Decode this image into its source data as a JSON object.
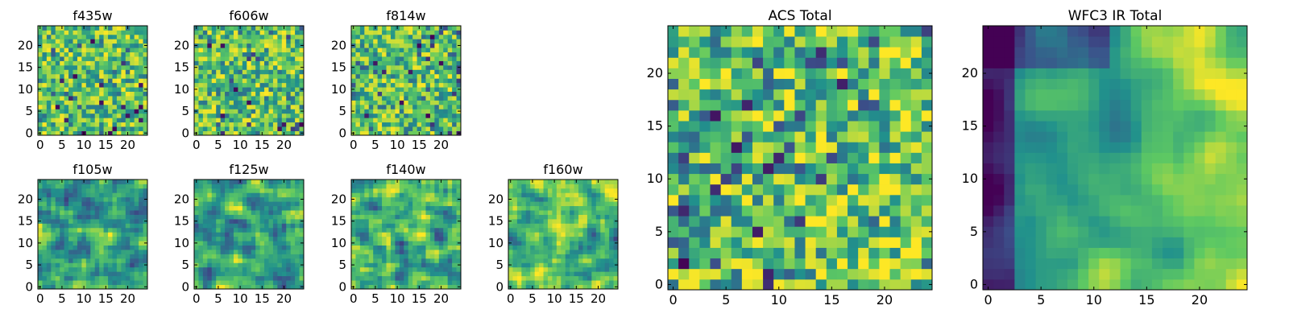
{
  "chart_data": [
    {
      "id": "f435w",
      "type": "heatmap",
      "title": "f435w",
      "xlabel": "",
      "ylabel": "",
      "grid_size": [
        25,
        25
      ],
      "colormap": "viridis",
      "xlim": [
        -0.5,
        24.5
      ],
      "ylim": [
        -0.5,
        24.5
      ],
      "xticks": [
        0,
        5,
        10,
        15,
        20
      ],
      "yticks": [
        0,
        5,
        10,
        15,
        20
      ],
      "texture": "noisy",
      "values": "per-pixel values are not individually readable; reconstructed as a noisy field"
    },
    {
      "id": "f606w",
      "type": "heatmap",
      "title": "f606w",
      "xlabel": "",
      "ylabel": "",
      "grid_size": [
        25,
        25
      ],
      "colormap": "viridis",
      "xlim": [
        -0.5,
        24.5
      ],
      "ylim": [
        -0.5,
        24.5
      ],
      "xticks": [
        0,
        5,
        10,
        15,
        20
      ],
      "yticks": [
        0,
        5,
        10,
        15,
        20
      ],
      "texture": "noisy"
    },
    {
      "id": "f814w",
      "type": "heatmap",
      "title": "f814w",
      "xlabel": "",
      "ylabel": "",
      "grid_size": [
        25,
        25
      ],
      "colormap": "viridis",
      "xlim": [
        -0.5,
        24.5
      ],
      "ylim": [
        -0.5,
        24.5
      ],
      "xticks": [
        0,
        5,
        10,
        15,
        20
      ],
      "yticks": [
        0,
        5,
        10,
        15,
        20
      ],
      "texture": "noisy"
    },
    {
      "id": "f105w",
      "type": "heatmap",
      "title": "f105w",
      "xlabel": "",
      "ylabel": "",
      "grid_size": [
        25,
        25
      ],
      "colormap": "viridis",
      "xlim": [
        -0.5,
        24.5
      ],
      "ylim": [
        -0.5,
        24.5
      ],
      "xticks": [
        0,
        5,
        10,
        15,
        20
      ],
      "yticks": [
        0,
        5,
        10,
        15,
        20
      ],
      "texture": "smooth"
    },
    {
      "id": "f125w",
      "type": "heatmap",
      "title": "f125w",
      "xlabel": "",
      "ylabel": "",
      "grid_size": [
        25,
        25
      ],
      "colormap": "viridis",
      "xlim": [
        -0.5,
        24.5
      ],
      "ylim": [
        -0.5,
        24.5
      ],
      "xticks": [
        0,
        5,
        10,
        15,
        20
      ],
      "yticks": [
        0,
        5,
        10,
        15,
        20
      ],
      "texture": "smooth"
    },
    {
      "id": "f140w",
      "type": "heatmap",
      "title": "f140w",
      "xlabel": "",
      "ylabel": "",
      "grid_size": [
        25,
        25
      ],
      "colormap": "viridis",
      "xlim": [
        -0.5,
        24.5
      ],
      "ylim": [
        -0.5,
        24.5
      ],
      "xticks": [
        0,
        5,
        10,
        15,
        20
      ],
      "yticks": [
        0,
        5,
        10,
        15,
        20
      ],
      "texture": "smooth"
    },
    {
      "id": "f160w",
      "type": "heatmap",
      "title": "f160w",
      "xlabel": "",
      "ylabel": "",
      "grid_size": [
        25,
        25
      ],
      "colormap": "viridis",
      "xlim": [
        -0.5,
        24.5
      ],
      "ylim": [
        -0.5,
        24.5
      ],
      "xticks": [
        0,
        5,
        10,
        15,
        20
      ],
      "yticks": [
        0,
        5,
        10,
        15,
        20
      ],
      "texture": "smooth"
    },
    {
      "id": "acs-total",
      "type": "heatmap",
      "title": "ACS Total",
      "xlabel": "",
      "ylabel": "",
      "grid_size": [
        25,
        25
      ],
      "colormap": "viridis",
      "xlim": [
        -0.5,
        24.5
      ],
      "ylim": [
        -0.5,
        24.5
      ],
      "xticks": [
        0,
        5,
        10,
        15,
        20
      ],
      "yticks": [
        0,
        5,
        10,
        15,
        20
      ],
      "texture": "blocky"
    },
    {
      "id": "wfc3-ir-total",
      "type": "heatmap",
      "title": "WFC3 IR Total",
      "xlabel": "",
      "ylabel": "",
      "grid_size": [
        25,
        25
      ],
      "colormap": "viridis",
      "xlim": [
        -0.5,
        24.5
      ],
      "ylim": [
        -0.5,
        24.5
      ],
      "xticks": [
        0,
        5,
        10,
        15,
        20
      ],
      "yticks": [
        0,
        5,
        10,
        15,
        20
      ],
      "texture": "gradient"
    }
  ],
  "colors": {
    "viridis_stops": [
      "#440154",
      "#3b528b",
      "#21918c",
      "#5ec962",
      "#fde725"
    ],
    "axis": "#000000",
    "background": "#ffffff"
  }
}
